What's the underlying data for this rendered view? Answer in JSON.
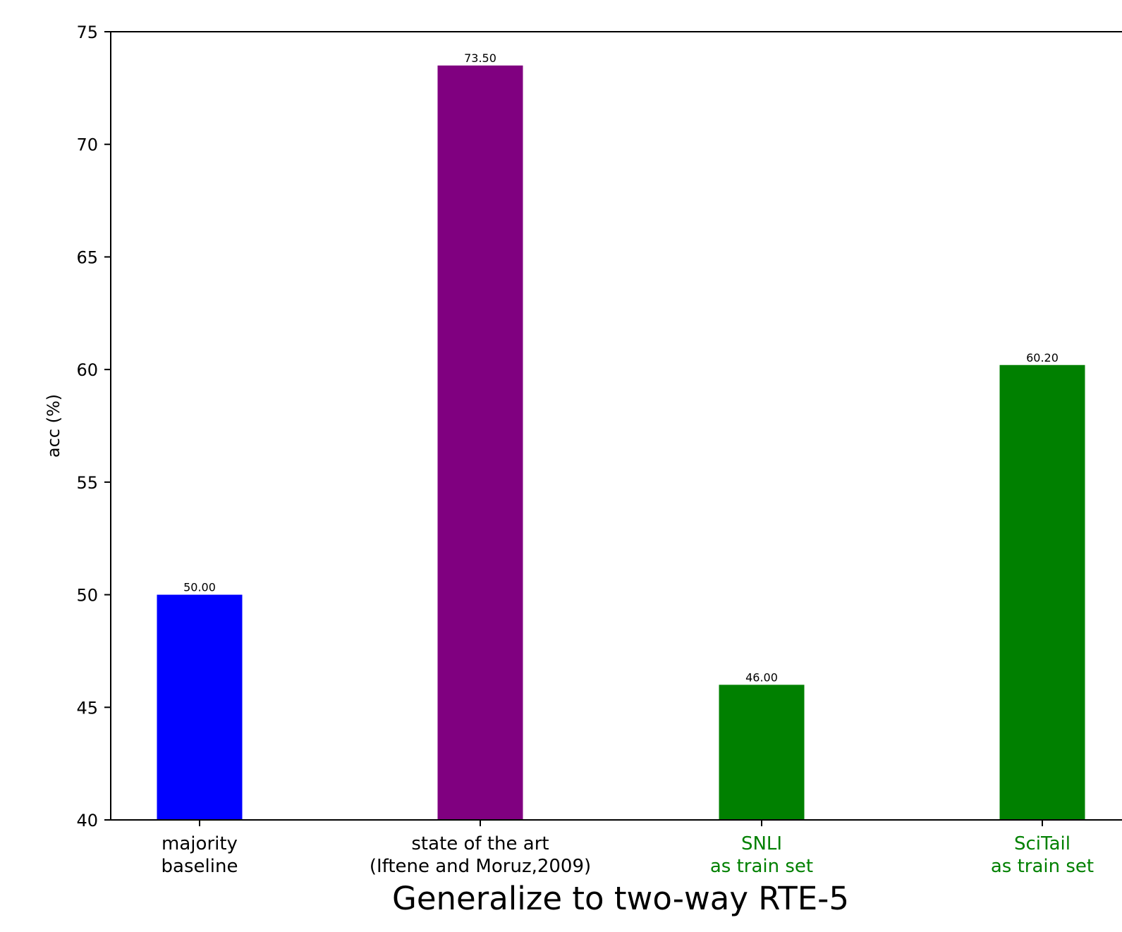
{
  "chart_data": {
    "type": "bar",
    "title": "",
    "xlabel": "Generalize to two-way RTE-5",
    "ylabel": "acc (%)",
    "ylim": [
      40,
      75
    ],
    "yticks": [
      "40",
      "45",
      "50",
      "55",
      "60",
      "65",
      "70",
      "75"
    ],
    "grid": false,
    "categories": [
      {
        "lines": [
          "majority",
          "baseline"
        ],
        "label_color": "#000000"
      },
      {
        "lines": [
          "state of the art",
          "(Iftene and Moruz,2009)"
        ],
        "label_color": "#000000"
      },
      {
        "lines": [
          "SNLI",
          "as train set"
        ],
        "label_color": "#008000"
      },
      {
        "lines": [
          "SciTail",
          "as train set"
        ],
        "label_color": "#008000"
      }
    ],
    "values": [
      50.0,
      73.5,
      46.0,
      60.2
    ],
    "value_labels": [
      "50.00",
      "73.50",
      "46.00",
      "60.20"
    ],
    "bar_colors": [
      "#0000ff",
      "#800080",
      "#008000",
      "#008000"
    ]
  }
}
